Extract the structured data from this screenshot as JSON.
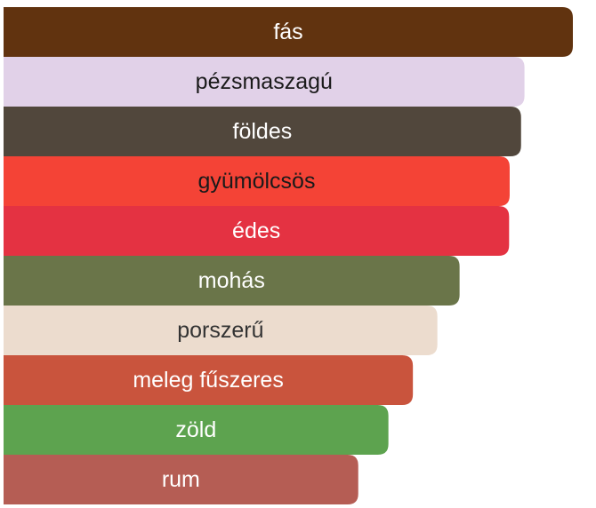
{
  "chart_data": {
    "type": "bar",
    "orientation": "horizontal",
    "title": "",
    "xlabel": "",
    "ylabel": "",
    "grid": false,
    "legend": "none",
    "xlim": [
      0,
      100
    ],
    "categories": [
      "fás",
      "pézsmaszagú",
      "földes",
      "gyümölcsös",
      "édes",
      "mohás",
      "porszerű",
      "meleg fűszeres",
      "zöld",
      "rum"
    ],
    "values": [
      100,
      91.5,
      90.9,
      88.9,
      88.8,
      80.1,
      76.2,
      71.9,
      67.6,
      62.3
    ],
    "colors": [
      "#61330f",
      "#e1d1e8",
      "#51473c",
      "#f44336",
      "#e43242",
      "#6a7549",
      "#ecdcce",
      "#c9543d",
      "#5da34f",
      "#b55d54"
    ],
    "label_colors": [
      "#ffffff",
      "#1a1a1a",
      "#ffffff",
      "#1a1a1a",
      "#ffffff",
      "#ffffff",
      "#333333",
      "#ffffff",
      "#ffffff",
      "#ffffff"
    ]
  }
}
